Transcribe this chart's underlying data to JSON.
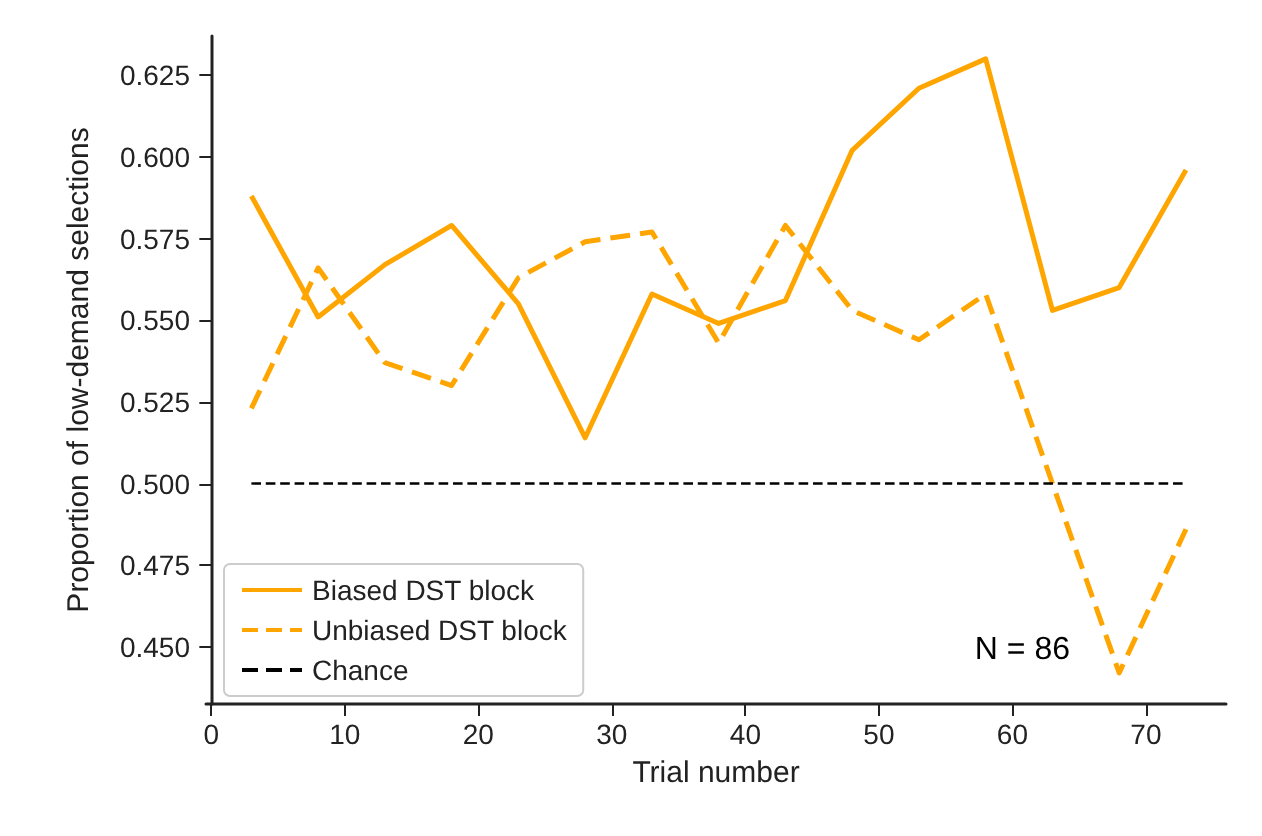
{
  "chart_data": {
    "type": "line",
    "xlabel": "Trial number",
    "ylabel": "Proportion of low-demand selections",
    "x": [
      3,
      8,
      13,
      18,
      23,
      28,
      33,
      38,
      43,
      48,
      53,
      58,
      63,
      68,
      73
    ],
    "series": [
      {
        "name": "Biased DST block",
        "color": "#ffa500",
        "line_style": "solid",
        "values": [
          0.588,
          0.551,
          0.567,
          0.579,
          0.555,
          0.514,
          0.558,
          0.549,
          0.556,
          0.602,
          0.621,
          0.63,
          0.553,
          0.56,
          0.596
        ]
      },
      {
        "name": "Unbiased DST block",
        "color": "#ffa500",
        "line_style": "dashed",
        "values": [
          0.523,
          0.566,
          0.537,
          0.53,
          0.563,
          0.574,
          0.577,
          0.543,
          0.579,
          0.553,
          0.544,
          0.558,
          0.5,
          0.442,
          0.486
        ]
      }
    ],
    "ref_lines": [
      {
        "axis": "y",
        "value": 0.5,
        "label": "Chance",
        "color": "#000000",
        "line_style": "dashed"
      }
    ],
    "annotations": [
      "N = 86"
    ],
    "xlim": [
      -0.4,
      76
    ],
    "xticks": [
      0,
      10,
      20,
      30,
      40,
      50,
      60,
      70
    ],
    "ylim": [
      0.4325,
      0.637
    ],
    "yticks": [
      {
        "value": 0.45,
        "label": "0.450"
      },
      {
        "value": 0.475,
        "label": "0.475"
      },
      {
        "value": 0.5,
        "label": "0.500"
      },
      {
        "value": 0.525,
        "label": "0.525"
      },
      {
        "value": 0.55,
        "label": "0.550"
      },
      {
        "value": 0.575,
        "label": "0.575"
      },
      {
        "value": 0.6,
        "label": "0.600"
      },
      {
        "value": 0.625,
        "label": "0.625"
      }
    ],
    "grid": false,
    "legend": "bottom left",
    "marker": "none"
  }
}
